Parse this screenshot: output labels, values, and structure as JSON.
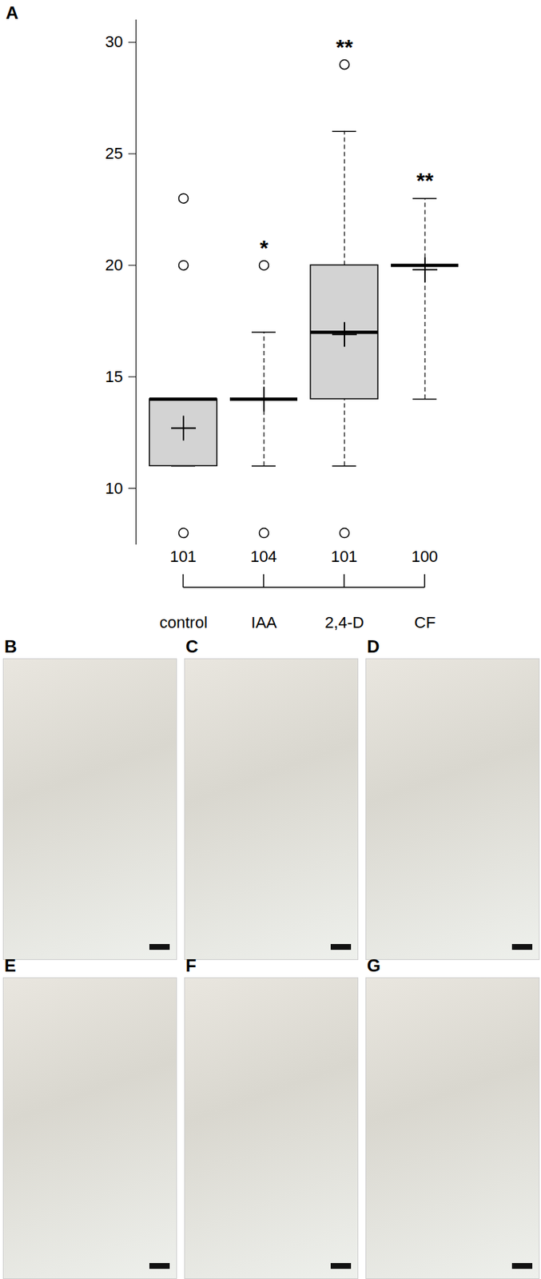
{
  "chart_data": {
    "type": "box",
    "panel_label": "A",
    "categories": [
      "control",
      "IAA",
      "2,4-D",
      "CF"
    ],
    "n": [
      101,
      104,
      101,
      100
    ],
    "boxes": [
      {
        "q1": 11,
        "median": 14,
        "q3": 14,
        "whisker_low": 11,
        "whisker_high": 14,
        "mean": 12.7,
        "outliers": [
          23,
          20,
          8
        ]
      },
      {
        "q1": 14,
        "median": 14,
        "q3": 14,
        "whisker_low": 11,
        "whisker_high": 17,
        "mean": 14.0,
        "outliers": [
          20,
          8
        ]
      },
      {
        "q1": 14,
        "median": 17,
        "q3": 20,
        "whisker_low": 11,
        "whisker_high": 26,
        "mean": 16.9,
        "outliers": [
          29,
          8
        ]
      },
      {
        "q1": 20,
        "median": 20,
        "q3": 20,
        "whisker_low": 14,
        "whisker_high": 23,
        "mean": 19.8,
        "outliers": []
      }
    ],
    "significance": [
      null,
      "*",
      "**",
      "**"
    ],
    "color": "#d3d3d3",
    "ylim": [
      7.5,
      31
    ],
    "yticks": [
      10,
      15,
      20,
      25,
      30
    ],
    "grid": false
  },
  "figure_panels": [
    "B",
    "C",
    "D",
    "E",
    "F",
    "G"
  ]
}
